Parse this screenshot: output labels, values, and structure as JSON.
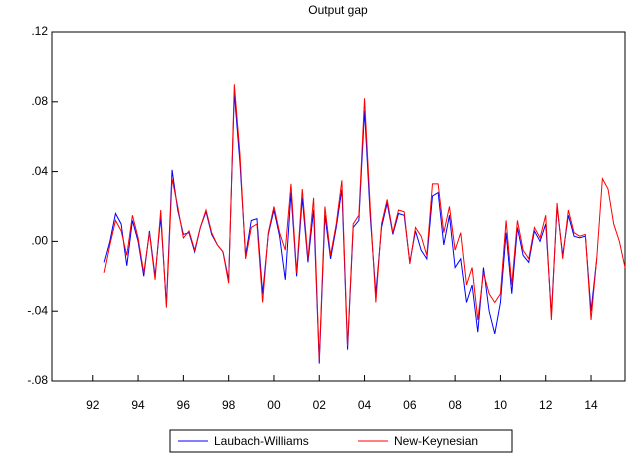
{
  "chart_data": {
    "type": "line",
    "title": "Output gap",
    "x": [
      1992.5,
      1992.75,
      1993,
      1993.25,
      1993.5,
      1993.75,
      1994,
      1994.25,
      1994.5,
      1994.75,
      1995,
      1995.25,
      1995.5,
      1995.75,
      1996,
      1996.25,
      1996.5,
      1996.75,
      1997,
      1997.25,
      1997.5,
      1997.75,
      1998,
      1998.25,
      1998.5,
      1998.75,
      1999,
      1999.25,
      1999.5,
      1999.75,
      2000,
      2000.25,
      2000.5,
      2000.75,
      2001,
      2001.25,
      2001.5,
      2001.75,
      2002,
      2002.25,
      2002.5,
      2002.75,
      2003,
      2003.25,
      2003.5,
      2003.75,
      2004,
      2004.25,
      2004.5,
      2004.75,
      2005,
      2005.25,
      2005.5,
      2005.75,
      2006,
      2006.25,
      2006.5,
      2006.75,
      2007,
      2007.25,
      2007.5,
      2007.75,
      2008,
      2008.25,
      2008.5,
      2008.75,
      2009,
      2009.25,
      2009.5,
      2009.75,
      2010,
      2010.25,
      2010.5,
      2010.75,
      2011,
      2011.25,
      2011.5,
      2011.75,
      2012,
      2012.25,
      2012.5,
      2012.75,
      2013,
      2013.25,
      2013.5,
      2013.75,
      2014,
      2014.25,
      2014.5,
      2014.75,
      2015,
      2015.25,
      2015.5
    ],
    "series": [
      {
        "name": "Laubach-Williams",
        "color": "#0000ff",
        "values": [
          -0.012,
          0.0,
          0.016,
          0.01,
          -0.014,
          0.012,
          0.0,
          -0.02,
          0.006,
          -0.02,
          0.014,
          -0.036,
          0.041,
          0.018,
          0.004,
          0.005,
          -0.006,
          0.008,
          0.017,
          0.004,
          -0.002,
          -0.006,
          -0.022,
          0.085,
          0.045,
          -0.008,
          0.012,
          0.013,
          -0.03,
          0.004,
          0.018,
          0.003,
          -0.022,
          0.028,
          -0.02,
          0.025,
          -0.012,
          0.018,
          -0.07,
          0.015,
          -0.01,
          0.008,
          0.03,
          -0.062,
          0.008,
          0.012,
          0.075,
          0.015,
          -0.03,
          0.008,
          0.022,
          0.004,
          0.016,
          0.015,
          -0.012,
          0.006,
          -0.005,
          -0.01,
          0.026,
          0.028,
          -0.002,
          0.015,
          -0.015,
          -0.01,
          -0.035,
          -0.025,
          -0.052,
          -0.015,
          -0.04,
          -0.053,
          -0.035,
          0.005,
          -0.03,
          0.008,
          -0.008,
          -0.012,
          0.006,
          0.0,
          0.01,
          -0.042,
          0.02,
          -0.008,
          0.015,
          0.003,
          0.002,
          0.003,
          -0.04,
          -0.01,
          null,
          null,
          null,
          null,
          null
        ]
      },
      {
        "name": "New-Keynesian",
        "color": "#ff0000",
        "values": [
          -0.018,
          -0.002,
          0.012,
          0.006,
          -0.008,
          0.015,
          0.002,
          -0.018,
          0.005,
          -0.022,
          0.018,
          -0.038,
          0.036,
          0.02,
          0.002,
          0.006,
          -0.005,
          0.008,
          0.018,
          0.005,
          -0.002,
          -0.006,
          -0.024,
          0.09,
          0.05,
          -0.01,
          0.008,
          0.01,
          -0.035,
          0.005,
          0.02,
          0.005,
          -0.005,
          0.033,
          -0.018,
          0.03,
          -0.01,
          0.025,
          -0.068,
          0.02,
          -0.008,
          0.01,
          0.035,
          -0.06,
          0.01,
          0.015,
          0.082,
          0.02,
          -0.035,
          0.01,
          0.024,
          0.005,
          0.018,
          0.017,
          -0.013,
          0.008,
          0.003,
          -0.008,
          0.033,
          0.033,
          0.005,
          0.02,
          -0.005,
          0.005,
          -0.025,
          -0.015,
          -0.045,
          -0.018,
          -0.03,
          -0.035,
          -0.03,
          0.012,
          -0.025,
          0.012,
          -0.005,
          -0.01,
          0.008,
          0.002,
          0.015,
          -0.045,
          0.022,
          -0.01,
          0.018,
          0.005,
          0.003,
          0.004,
          -0.045,
          -0.01,
          0.036,
          0.03,
          0.01,
          0.0,
          -0.015
        ]
      }
    ],
    "xlim": [
      1990.2,
      2015.5
    ],
    "xticks": [
      {
        "value": 1992,
        "label": "92"
      },
      {
        "value": 1994,
        "label": "94"
      },
      {
        "value": 1996,
        "label": "96"
      },
      {
        "value": 1998,
        "label": "98"
      },
      {
        "value": 2000,
        "label": "00"
      },
      {
        "value": 2002,
        "label": "02"
      },
      {
        "value": 2004,
        "label": "04"
      },
      {
        "value": 2006,
        "label": "06"
      },
      {
        "value": 2008,
        "label": "08"
      },
      {
        "value": 2010,
        "label": "10"
      },
      {
        "value": 2012,
        "label": "12"
      },
      {
        "value": 2014,
        "label": "14"
      }
    ],
    "ylim": [
      -0.08,
      0.12
    ],
    "yticks": [
      {
        "value": -0.08,
        "label": "-.08"
      },
      {
        "value": -0.04,
        "label": "-.04"
      },
      {
        "value": 0,
        "label": ".00"
      },
      {
        "value": 0.04,
        "label": ".04"
      },
      {
        "value": 0.08,
        "label": ".08"
      },
      {
        "value": 0.12,
        "label": ".12"
      }
    ],
    "legend": "bottom"
  }
}
